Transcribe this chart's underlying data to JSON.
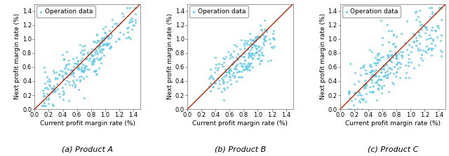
{
  "subplot_titles": [
    "(a) Product A",
    "(b) Product B",
    "(c) Product C"
  ],
  "xlabel": "Current profit margin rate (%)",
  "ylabel": "Next profit margin rate (%)",
  "xlim": [
    0.0,
    1.5
  ],
  "ylim": [
    0.0,
    1.5
  ],
  "xticks": [
    0.0,
    0.2,
    0.4,
    0.6,
    0.8,
    1.0,
    1.2,
    1.4
  ],
  "yticks": [
    0.0,
    0.2,
    0.4,
    0.6,
    0.8,
    1.0,
    1.2,
    1.4
  ],
  "dot_color": "#55C8EA",
  "line_color": "#CC2200",
  "legend_label": "Operation data",
  "dot_size": 5,
  "dot_alpha": 0.75,
  "n_points_A": 280,
  "n_points_B": 220,
  "n_points_C": 280,
  "random_seed_A": 10,
  "random_seed_B": 20,
  "random_seed_C": 30
}
